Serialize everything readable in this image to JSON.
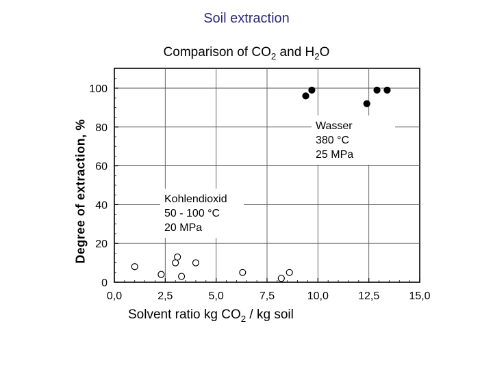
{
  "slide": {
    "title": "Soil extraction",
    "subtitle_pre": "Comparison of CO",
    "subtitle_sub1": "2",
    "subtitle_mid": " and H",
    "subtitle_sub2": "2",
    "subtitle_post": "O"
  },
  "chart_data": {
    "type": "scatter",
    "ylabel": "Degree of extraction, %",
    "xlabel_pre": "Solvent ratio kg CO",
    "xlabel_sub": "2",
    "xlabel_post": " / kg soil",
    "xlim": [
      0,
      15
    ],
    "ylim": [
      0,
      110
    ],
    "xticks": [
      0,
      2.5,
      5,
      7.5,
      10,
      12.5,
      15
    ],
    "xtick_labels": [
      "0,0",
      "2,5",
      "5,0",
      "7,5",
      "10,0",
      "12,5",
      "15,0"
    ],
    "yticks": [
      0,
      20,
      40,
      60,
      80,
      100
    ],
    "ytick_labels": [
      "0",
      "20",
      "40",
      "60",
      "80",
      "100"
    ],
    "grid": true,
    "series": [
      {
        "name": "Kohlendioxid",
        "marker": "open-circle",
        "annotation": [
          "Kohlendioxid",
          "50 - 100 °C",
          "20 MPa"
        ],
        "x": [
          1.0,
          2.3,
          3.0,
          3.1,
          3.3,
          4.0,
          6.3,
          8.2,
          8.6
        ],
        "y": [
          8,
          4,
          10,
          13,
          3,
          10,
          5,
          2,
          5
        ]
      },
      {
        "name": "Wasser",
        "marker": "filled-circle",
        "annotation": [
          "Wasser",
          "380 °C",
          "25 MPa"
        ],
        "x": [
          9.4,
          9.7,
          12.4,
          12.9,
          13.4
        ],
        "y": [
          96,
          99,
          92,
          99,
          99
        ]
      }
    ]
  }
}
